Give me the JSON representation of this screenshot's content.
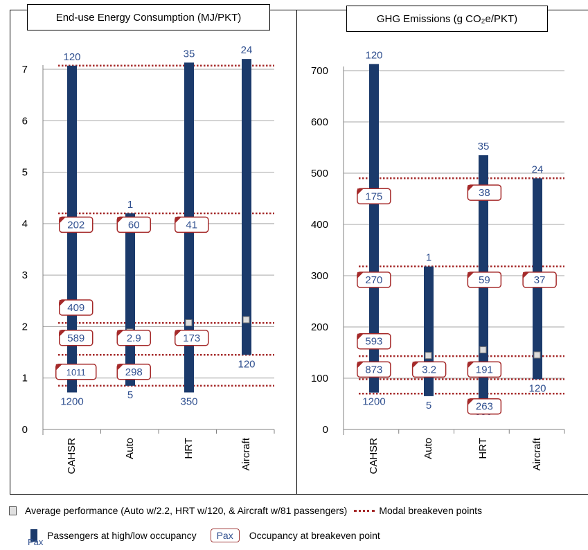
{
  "chart_data": [
    {
      "type": "bar",
      "title": "End-use Energy Consumption (MJ/PKT)",
      "ylim": [
        0,
        7.5
      ],
      "y_ticks": [
        0,
        1,
        2,
        3,
        4,
        5,
        6,
        7
      ],
      "categories": [
        "CAHSR",
        "Auto",
        "HRT",
        "Aircraft"
      ],
      "ranges": [
        {
          "category": "CAHSR",
          "low": 0.72,
          "high": 7.07,
          "label_top": "120",
          "label_bottom": "1200"
        },
        {
          "category": "Auto",
          "low": 0.85,
          "high": 4.2,
          "label_top": "1",
          "label_bottom": "5"
        },
        {
          "category": "HRT",
          "low": 0.72,
          "high": 7.13,
          "label_top": "35",
          "label_bottom": "350"
        },
        {
          "category": "Aircraft",
          "low": 1.45,
          "high": 7.2,
          "label_top": "24",
          "label_bottom": "120"
        }
      ],
      "averages": [
        {
          "category": "Auto",
          "value": 1.9
        },
        {
          "category": "HRT",
          "value": 2.08
        },
        {
          "category": "Aircraft",
          "value": 2.14
        }
      ],
      "breakeven_lines": [
        7.07,
        4.2,
        2.07,
        1.45,
        0.85
      ],
      "breakeven_labels": [
        {
          "text": "202",
          "gap": 0,
          "y": 3.98
        },
        {
          "text": "60",
          "gap": 1,
          "y": 3.98
        },
        {
          "text": "41",
          "gap": 2,
          "y": 3.98
        },
        {
          "text": "409",
          "gap": 0,
          "y": 2.37
        },
        {
          "text": "589",
          "gap": 0,
          "y": 1.78
        },
        {
          "text": "2.9",
          "gap": 1,
          "y": 1.78
        },
        {
          "text": "173",
          "gap": 2,
          "y": 1.78
        },
        {
          "text": "1011",
          "gap": 0,
          "y": 1.12
        },
        {
          "text": "298",
          "gap": 1,
          "y": 1.12
        }
      ]
    },
    {
      "type": "bar",
      "title": "GHG Emissions (g CO₂e/PKT)",
      "ylim": [
        0,
        750
      ],
      "y_ticks": [
        0,
        100,
        200,
        300,
        400,
        500,
        600,
        700
      ],
      "categories": [
        "CAHSR",
        "Auto",
        "HRT",
        "Aircraft"
      ],
      "ranges": [
        {
          "category": "CAHSR",
          "low": 72,
          "high": 713,
          "label_top": "120",
          "label_bottom": "1200"
        },
        {
          "category": "Auto",
          "low": 65,
          "high": 318,
          "label_top": "1",
          "label_bottom": "5"
        },
        {
          "category": "HRT",
          "low": 53,
          "high": 535,
          "label_top": "35",
          "label_bottom": "350"
        },
        {
          "category": "Aircraft",
          "low": 98,
          "high": 490,
          "label_top": "24",
          "label_bottom": "120"
        }
      ],
      "averages": [
        {
          "category": "Auto",
          "value": 145
        },
        {
          "category": "HRT",
          "value": 156
        },
        {
          "category": "Aircraft",
          "value": 146
        }
      ],
      "breakeven_lines": [
        490,
        318,
        143,
        98,
        70
      ],
      "breakeven_labels": [
        {
          "text": "175",
          "gap": 0,
          "y": 455
        },
        {
          "text": "38",
          "gap": 2,
          "y": 462
        },
        {
          "text": "270",
          "gap": 0,
          "y": 292
        },
        {
          "text": "59",
          "gap": 2,
          "y": 292
        },
        {
          "text": "37",
          "gap": 3,
          "y": 292
        },
        {
          "text": "593",
          "gap": 0,
          "y": 172
        },
        {
          "text": "873",
          "gap": 0,
          "y": 117
        },
        {
          "text": "3.2",
          "gap": 1,
          "y": 117
        },
        {
          "text": "191",
          "gap": 2,
          "y": 117
        },
        {
          "text": "263",
          "gap": 2,
          "y": 45
        }
      ]
    }
  ],
  "colors": {
    "bar": "#1b3a6b",
    "breakeven": "#a52a2a",
    "label_text": "#2f4f8f",
    "axis": "#808080",
    "grid": "#a6a6a6"
  },
  "legend": {
    "average": "Average performance (Auto w/2.2, HRT w/120, & Aircraft w/81 passengers)",
    "breakeven": "Modal breakeven points",
    "high_low": "Passengers at high/low occupancy",
    "high_low_swatch_label": "Pax",
    "breakeven_box_label": "Pax",
    "breakeven_box": "Occupancy at breakeven point"
  }
}
